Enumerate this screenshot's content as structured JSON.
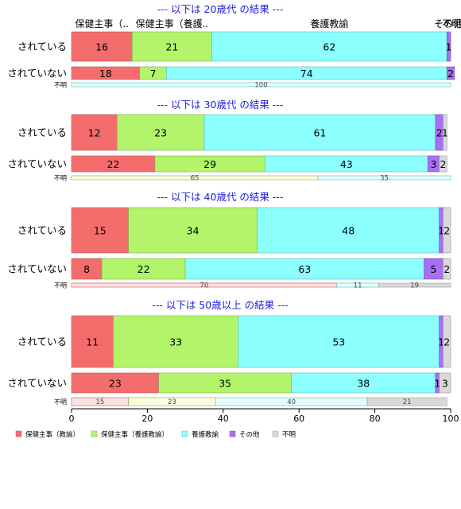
{
  "chart_data": {
    "type": "bar",
    "stacked": "horizontal-percent",
    "xlim": [
      0,
      100
    ],
    "x_ticks": [
      "0",
      "20",
      "40",
      "60",
      "80",
      "100"
    ],
    "legend": [
      {
        "name": "保健主事（教諭）",
        "color": "#f46d6d"
      },
      {
        "name": "保健主事（養護教諭）",
        "color": "#b3f56a"
      },
      {
        "name": "養護教諭",
        "color": "#8cffff"
      },
      {
        "name": "その他",
        "color": "#a86ff2"
      },
      {
        "name": "不明",
        "color": "#d9d9d9"
      }
    ],
    "legend_position": "bottom-left",
    "top_labels": [
      {
        "text": "保健主事（..",
        "pos": 8
      },
      {
        "text": "保健主事（養護..",
        "pos": 26.5
      },
      {
        "text": "養護教諭",
        "pos": 68
      },
      {
        "text": "その他",
        "pos": 99.4
      },
      {
        "text": "不明",
        "pos": 100.3
      }
    ],
    "panels": [
      {
        "title": "--- 以下は 20歳代 の結果 ---",
        "rows": [
          {
            "label": "されている",
            "values": [
              16,
              21,
              62,
              1,
              0
            ],
            "labels": [
              "16",
              "21",
              "62",
              "1",
              ""
            ]
          },
          {
            "label": "されていない",
            "values": [
              18,
              7,
              74,
              2,
              0
            ],
            "labels": [
              "18",
              "7",
              "74",
              "2",
              ""
            ]
          }
        ],
        "unknown": {
          "label": "不明",
          "values": [
            0,
            0,
            100,
            0,
            0
          ],
          "labels": [
            "",
            "",
            "100",
            "",
            ""
          ]
        }
      },
      {
        "title": "--- 以下は 30歳代 の結果 ---",
        "rows": [
          {
            "label": "されている",
            "values": [
              12,
              23,
              61,
              2,
              1
            ],
            "labels": [
              "12",
              "23",
              "61",
              "2",
              "1"
            ]
          },
          {
            "label": "されていない",
            "values": [
              22,
              29,
              43,
              3,
              2
            ],
            "labels": [
              "22",
              "29",
              "43",
              "3",
              "2"
            ]
          }
        ],
        "unknown": {
          "label": "不明",
          "values": [
            0,
            65,
            35,
            0,
            0
          ],
          "labels": [
            "",
            "65",
            "35",
            "",
            ""
          ]
        }
      },
      {
        "title": "--- 以下は 40歳代 の結果 ---",
        "rows": [
          {
            "label": "されている",
            "values": [
              15,
              34,
              48,
              1,
              2
            ],
            "labels": [
              "15",
              "34",
              "48",
              "1",
              "2"
            ]
          },
          {
            "label": "されていない",
            "values": [
              8,
              22,
              63,
              5,
              2
            ],
            "labels": [
              "8",
              "22",
              "63",
              "5",
              "2"
            ]
          }
        ],
        "unknown": {
          "label": "不明",
          "values": [
            70,
            0,
            11,
            0,
            19
          ],
          "labels": [
            "70",
            "",
            "11",
            "",
            "19"
          ]
        }
      },
      {
        "title": "--- 以下は 50歳以上 の結果 ---",
        "rows": [
          {
            "label": "されている",
            "values": [
              11,
              33,
              53,
              1,
              2
            ],
            "labels": [
              "11",
              "33",
              "53",
              "1",
              "2"
            ]
          },
          {
            "label": "されていない",
            "values": [
              23,
              35,
              38,
              1,
              3
            ],
            "labels": [
              "23",
              "35",
              "38",
              "1",
              "3"
            ]
          }
        ],
        "unknown": {
          "label": "不明",
          "values": [
            15,
            23,
            40,
            0,
            21
          ],
          "labels": [
            "15",
            "23",
            "40",
            "",
            "21"
          ]
        }
      }
    ]
  }
}
